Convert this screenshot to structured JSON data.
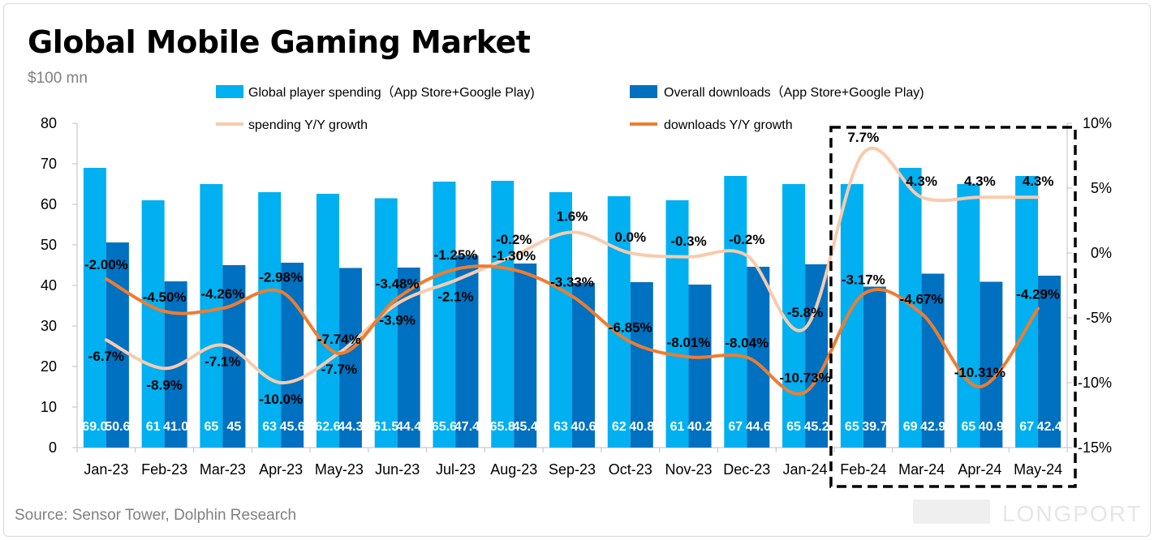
{
  "title": "Global Mobile Gaming Market",
  "unit": "$100 mn",
  "source": "Source: Sensor Tower, Dolphin Research",
  "watermark": "LONGPORT",
  "colors": {
    "spending_bar": "#00b0f0",
    "downloads_bar": "#0070c0",
    "spending_line": "#f8cbad",
    "downloads_line": "#ed7d31"
  },
  "chart_data": {
    "type": "bar",
    "categories": [
      "Jan-23",
      "Feb-23",
      "Mar-23",
      "Apr-23",
      "May-23",
      "Jun-23",
      "Jul-23",
      "Aug-23",
      "Sep-23",
      "Oct-23",
      "Nov-23",
      "Dec-23",
      "Jan-24",
      "Feb-24",
      "Mar-24",
      "Apr-24",
      "May-24"
    ],
    "ylim": [
      0,
      80
    ],
    "y_ticks": [
      "0",
      "10",
      "20",
      "30",
      "40",
      "50",
      "60",
      "70",
      "80"
    ],
    "y2lim": [
      -15,
      10
    ],
    "y2_ticks": [
      "-15%",
      "-10%",
      "-5%",
      "0%",
      "5%",
      "10%"
    ],
    "series": [
      {
        "name": "Global player spending（App Store+Google Play)",
        "type": "bar",
        "axis": "left",
        "values": [
          69,
          61,
          65,
          63,
          62.6,
          61.5,
          65.6,
          65.8,
          63,
          62,
          61,
          67,
          65,
          65,
          69,
          65,
          67
        ],
        "labels": [
          "69.0",
          "61",
          "65",
          "63",
          "62.6",
          "61.5",
          "65.6",
          "65.8",
          "63",
          "62",
          "61",
          "67",
          "65",
          "65",
          "69",
          "65",
          "67"
        ]
      },
      {
        "name": "Overall downloads（App Store+Google Play)",
        "type": "bar",
        "axis": "left",
        "values": [
          50.6,
          41.0,
          45,
          45.6,
          44.3,
          44.4,
          47.4,
          45.4,
          40.6,
          40.8,
          40.2,
          44.6,
          45.2,
          39.7,
          42.9,
          40.9,
          42.4
        ],
        "labels": [
          "50.6",
          "41.0",
          "45",
          "45.6",
          "44.3",
          "44.4",
          "47.4",
          "45.4",
          "40.6",
          "40.8",
          "40.2",
          "44.6",
          "45.2",
          "39.7",
          "42.9",
          "40.9",
          "42.4"
        ]
      },
      {
        "name": "spending Y/Y growth",
        "type": "line",
        "axis": "right",
        "values": [
          -6.7,
          -8.9,
          -7.1,
          -10.0,
          -7.7,
          -3.9,
          -2.1,
          -0.2,
          1.6,
          0.0,
          -0.3,
          -0.2,
          -5.8,
          7.7,
          4.3,
          4.3,
          4.3
        ],
        "labels": [
          "-6.7%",
          "-8.9%",
          "-7.1%",
          "-10.0%",
          "-7.7%",
          "-3.9%",
          "-2.1%",
          "-0.2%",
          "1.6%",
          "0.0%",
          "-0.3%",
          "-0.2%",
          "-5.8%",
          "7.7%",
          "4.3%",
          "4.3%",
          "4.3%"
        ]
      },
      {
        "name": "downloads Y/Y growth",
        "type": "line",
        "axis": "right",
        "values": [
          -2.0,
          -4.5,
          -4.26,
          -2.98,
          -7.74,
          -3.48,
          -1.25,
          -1.3,
          -3.33,
          -6.85,
          -8.01,
          -8.04,
          -10.73,
          -3.17,
          -4.67,
          -10.31,
          -4.29
        ],
        "labels": [
          "-2.00%",
          "-4.50%",
          "-4.26%",
          "-2.98%",
          "-7.74%",
          "-3.48%",
          "-1.25%",
          "-1.30%",
          "-3.33%",
          "-6.85%",
          "-8.01%",
          "-8.04%",
          "-10.73%",
          "-3.17%",
          "-4.67%",
          "-10.31%",
          "-4.29%"
        ]
      }
    ],
    "legend": "top",
    "grid": false,
    "highlight": {
      "from": "Feb-24",
      "to": "May-24",
      "style": "dashed-box"
    }
  }
}
